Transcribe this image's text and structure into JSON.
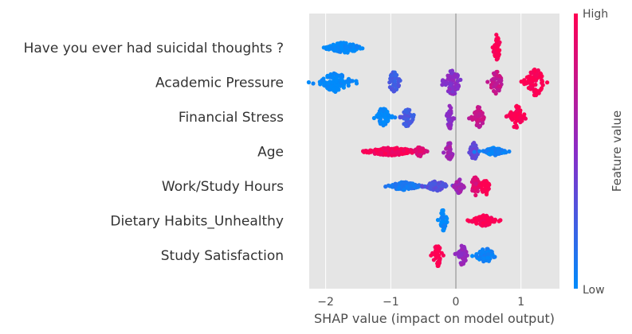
{
  "chart_data": {
    "type": "scatter",
    "subtype": "shap-beeswarm",
    "title": "",
    "xlabel": "SHAP value (impact on model output)",
    "ylabel": "",
    "xlim": [
      -2.3,
      1.6
    ],
    "xticks": [
      -2,
      -1,
      0,
      1
    ],
    "xtick_labels": [
      "−2",
      "−1",
      "0",
      "1"
    ],
    "grid": true,
    "background": "#e5e5e5",
    "colorbar": {
      "title": "Feature value",
      "high_label": "High",
      "low_label": "Low",
      "low_color": "#008bfb",
      "high_color": "#ff0052"
    },
    "features": [
      {
        "name": "Have you ever had suicidal thoughts ?",
        "clusters": [
          {
            "x": -1.72,
            "spread": 0.32,
            "height": 13,
            "fv": 0.0
          },
          {
            "x": 0.63,
            "spread": 0.07,
            "height": 34,
            "fv": 1.0
          }
        ]
      },
      {
        "name": "Academic Pressure",
        "clusters": [
          {
            "x": -1.85,
            "spread": 0.28,
            "height": 24,
            "fv": 0.0
          },
          {
            "x": -0.95,
            "spread": 0.1,
            "height": 28,
            "fv": 0.25
          },
          {
            "x": -0.05,
            "spread": 0.18,
            "height": 30,
            "fv": 0.5
          },
          {
            "x": 0.62,
            "spread": 0.12,
            "height": 30,
            "fv": 0.75
          },
          {
            "x": 1.22,
            "spread": 0.18,
            "height": 34,
            "fv": 1.0
          }
        ]
      },
      {
        "name": "Financial Stress",
        "clusters": [
          {
            "x": -1.12,
            "spread": 0.14,
            "height": 22,
            "fv": 0.0
          },
          {
            "x": -0.75,
            "spread": 0.12,
            "height": 24,
            "fv": 0.25
          },
          {
            "x": -0.09,
            "spread": 0.07,
            "height": 30,
            "fv": 0.5
          },
          {
            "x": 0.35,
            "spread": 0.12,
            "height": 26,
            "fv": 0.75
          },
          {
            "x": 0.93,
            "spread": 0.14,
            "height": 30,
            "fv": 1.0
          }
        ]
      },
      {
        "name": "Age",
        "clusters": [
          {
            "x": -1.0,
            "spread": 0.45,
            "height": 10,
            "fv": 0.95
          },
          {
            "x": -0.55,
            "spread": 0.1,
            "height": 12,
            "fv": 0.85
          },
          {
            "x": -0.1,
            "spread": 0.07,
            "height": 22,
            "fv": 0.6
          },
          {
            "x": 0.28,
            "spread": 0.08,
            "height": 22,
            "fv": 0.35
          },
          {
            "x": 0.6,
            "spread": 0.2,
            "height": 10,
            "fv": 0.05
          }
        ]
      },
      {
        "name": "Work/Study Hours",
        "clusters": [
          {
            "x": -0.8,
            "spread": 0.28,
            "height": 10,
            "fv": 0.1
          },
          {
            "x": -0.3,
            "spread": 0.2,
            "height": 12,
            "fv": 0.3
          },
          {
            "x": 0.05,
            "spread": 0.08,
            "height": 18,
            "fv": 0.6
          },
          {
            "x": 0.3,
            "spread": 0.08,
            "height": 24,
            "fv": 0.85
          },
          {
            "x": 0.45,
            "spread": 0.07,
            "height": 28,
            "fv": 1.0
          }
        ]
      },
      {
        "name": "Dietary Habits_Unhealthy",
        "clusters": [
          {
            "x": -0.2,
            "spread": 0.07,
            "height": 28,
            "fv": 0.0
          },
          {
            "x": 0.42,
            "spread": 0.22,
            "height": 14,
            "fv": 1.0
          }
        ]
      },
      {
        "name": "Study Satisfaction",
        "clusters": [
          {
            "x": -0.28,
            "spread": 0.1,
            "height": 28,
            "fv": 1.0
          },
          {
            "x": 0.1,
            "spread": 0.08,
            "height": 28,
            "fv": 0.55
          },
          {
            "x": 0.45,
            "spread": 0.18,
            "height": 18,
            "fv": 0.05
          }
        ]
      }
    ]
  }
}
